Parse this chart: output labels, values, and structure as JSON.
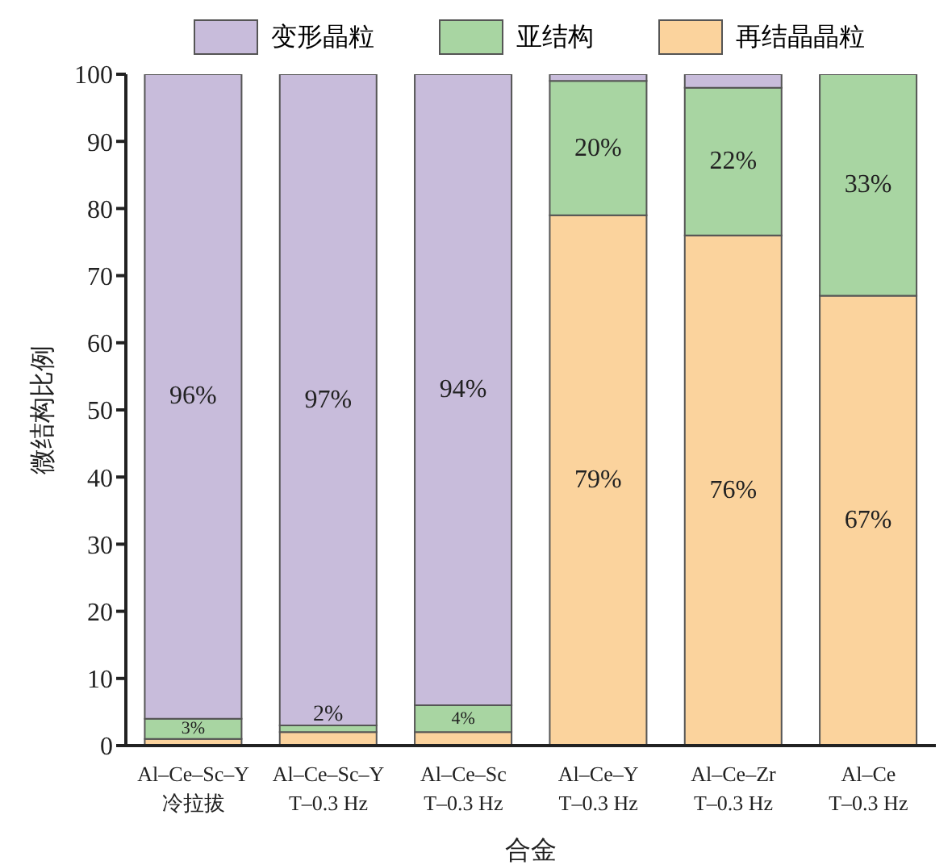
{
  "chart_data": {
    "type": "bar",
    "stacked": true,
    "xlabel": "合金",
    "ylabel": "微结构比例",
    "categories": [
      "Al–Ce–Sc–Y\n冷拉拔",
      "Al–Ce–Sc–Y\nT–0.3 Hz",
      "Al–Ce–Sc\nT–0.3 Hz",
      "Al–Ce–Y\nT–0.3 Hz",
      "Al–Ce–Zr\nT–0.3 Hz",
      "Al–Ce\nT–0.3 Hz"
    ],
    "series": [
      {
        "name": "再结晶晶粒",
        "color": "#fbd39d",
        "values": [
          1,
          2,
          2,
          79,
          76,
          67
        ],
        "value_labels": [
          null,
          "2%",
          null,
          "79%",
          "76%",
          "67%"
        ]
      },
      {
        "name": "亚结构",
        "color": "#a8d5a2",
        "values": [
          3,
          1,
          4,
          20,
          22,
          33
        ],
        "value_labels": [
          "3%",
          null,
          "4%",
          "20%",
          "22%",
          "33%"
        ]
      },
      {
        "name": "变形晶粒",
        "color": "#c8bcdb",
        "values": [
          96,
          97,
          94,
          1,
          2,
          0
        ],
        "value_labels": [
          "96%",
          "97%",
          "94%",
          null,
          null,
          null
        ]
      }
    ],
    "ylim": [
      0,
      100
    ],
    "yticks": [
      0,
      10,
      20,
      30,
      40,
      50,
      60,
      70,
      80,
      90,
      100
    ],
    "grid": false,
    "legend": "top"
  }
}
